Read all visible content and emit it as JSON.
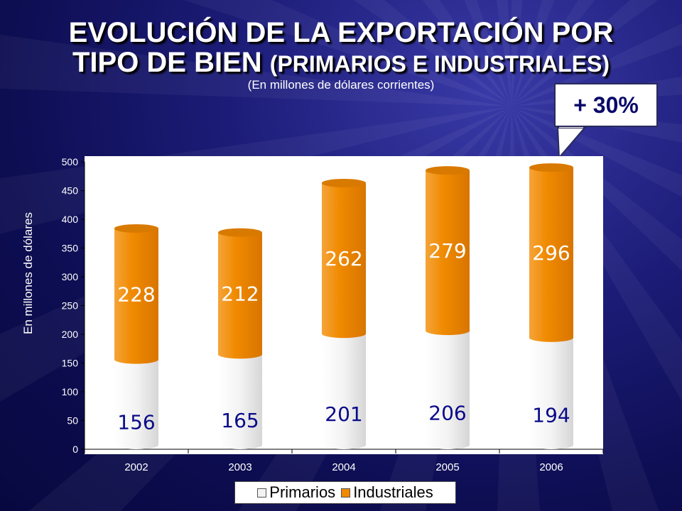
{
  "title_line1": "EVOLUCIÓN DE LA EXPORTACIÓN POR",
  "title_line2_main": "TIPO DE BIEN",
  "title_line2_paren": "(PRIMARIOS E INDUSTRIALES)",
  "subtitle": "(En millones de dólares corrientes)",
  "callout": "+ 30%",
  "colors": {
    "background": "#14146a",
    "primarios": "#f2f2f2",
    "industriales": "#f08a00",
    "label_primarios": "#0a0a8a",
    "label_industriales": "#ffffff"
  },
  "chart_data": {
    "type": "bar",
    "stacked": true,
    "categories": [
      "2002",
      "2003",
      "2004",
      "2005",
      "2006"
    ],
    "series": [
      {
        "name": "Primarios",
        "values": [
          156,
          165,
          201,
          206,
          194
        ]
      },
      {
        "name": "Industriales",
        "values": [
          228,
          212,
          262,
          279,
          296
        ]
      }
    ],
    "ylabel": "En millones de dólares",
    "xlabel": "",
    "ylim": [
      0,
      500
    ],
    "yticks": [
      "0",
      "50",
      "100",
      "150",
      "200",
      "250",
      "300",
      "350",
      "400",
      "450",
      "500"
    ],
    "legend_position": "bottom",
    "grid": false
  }
}
